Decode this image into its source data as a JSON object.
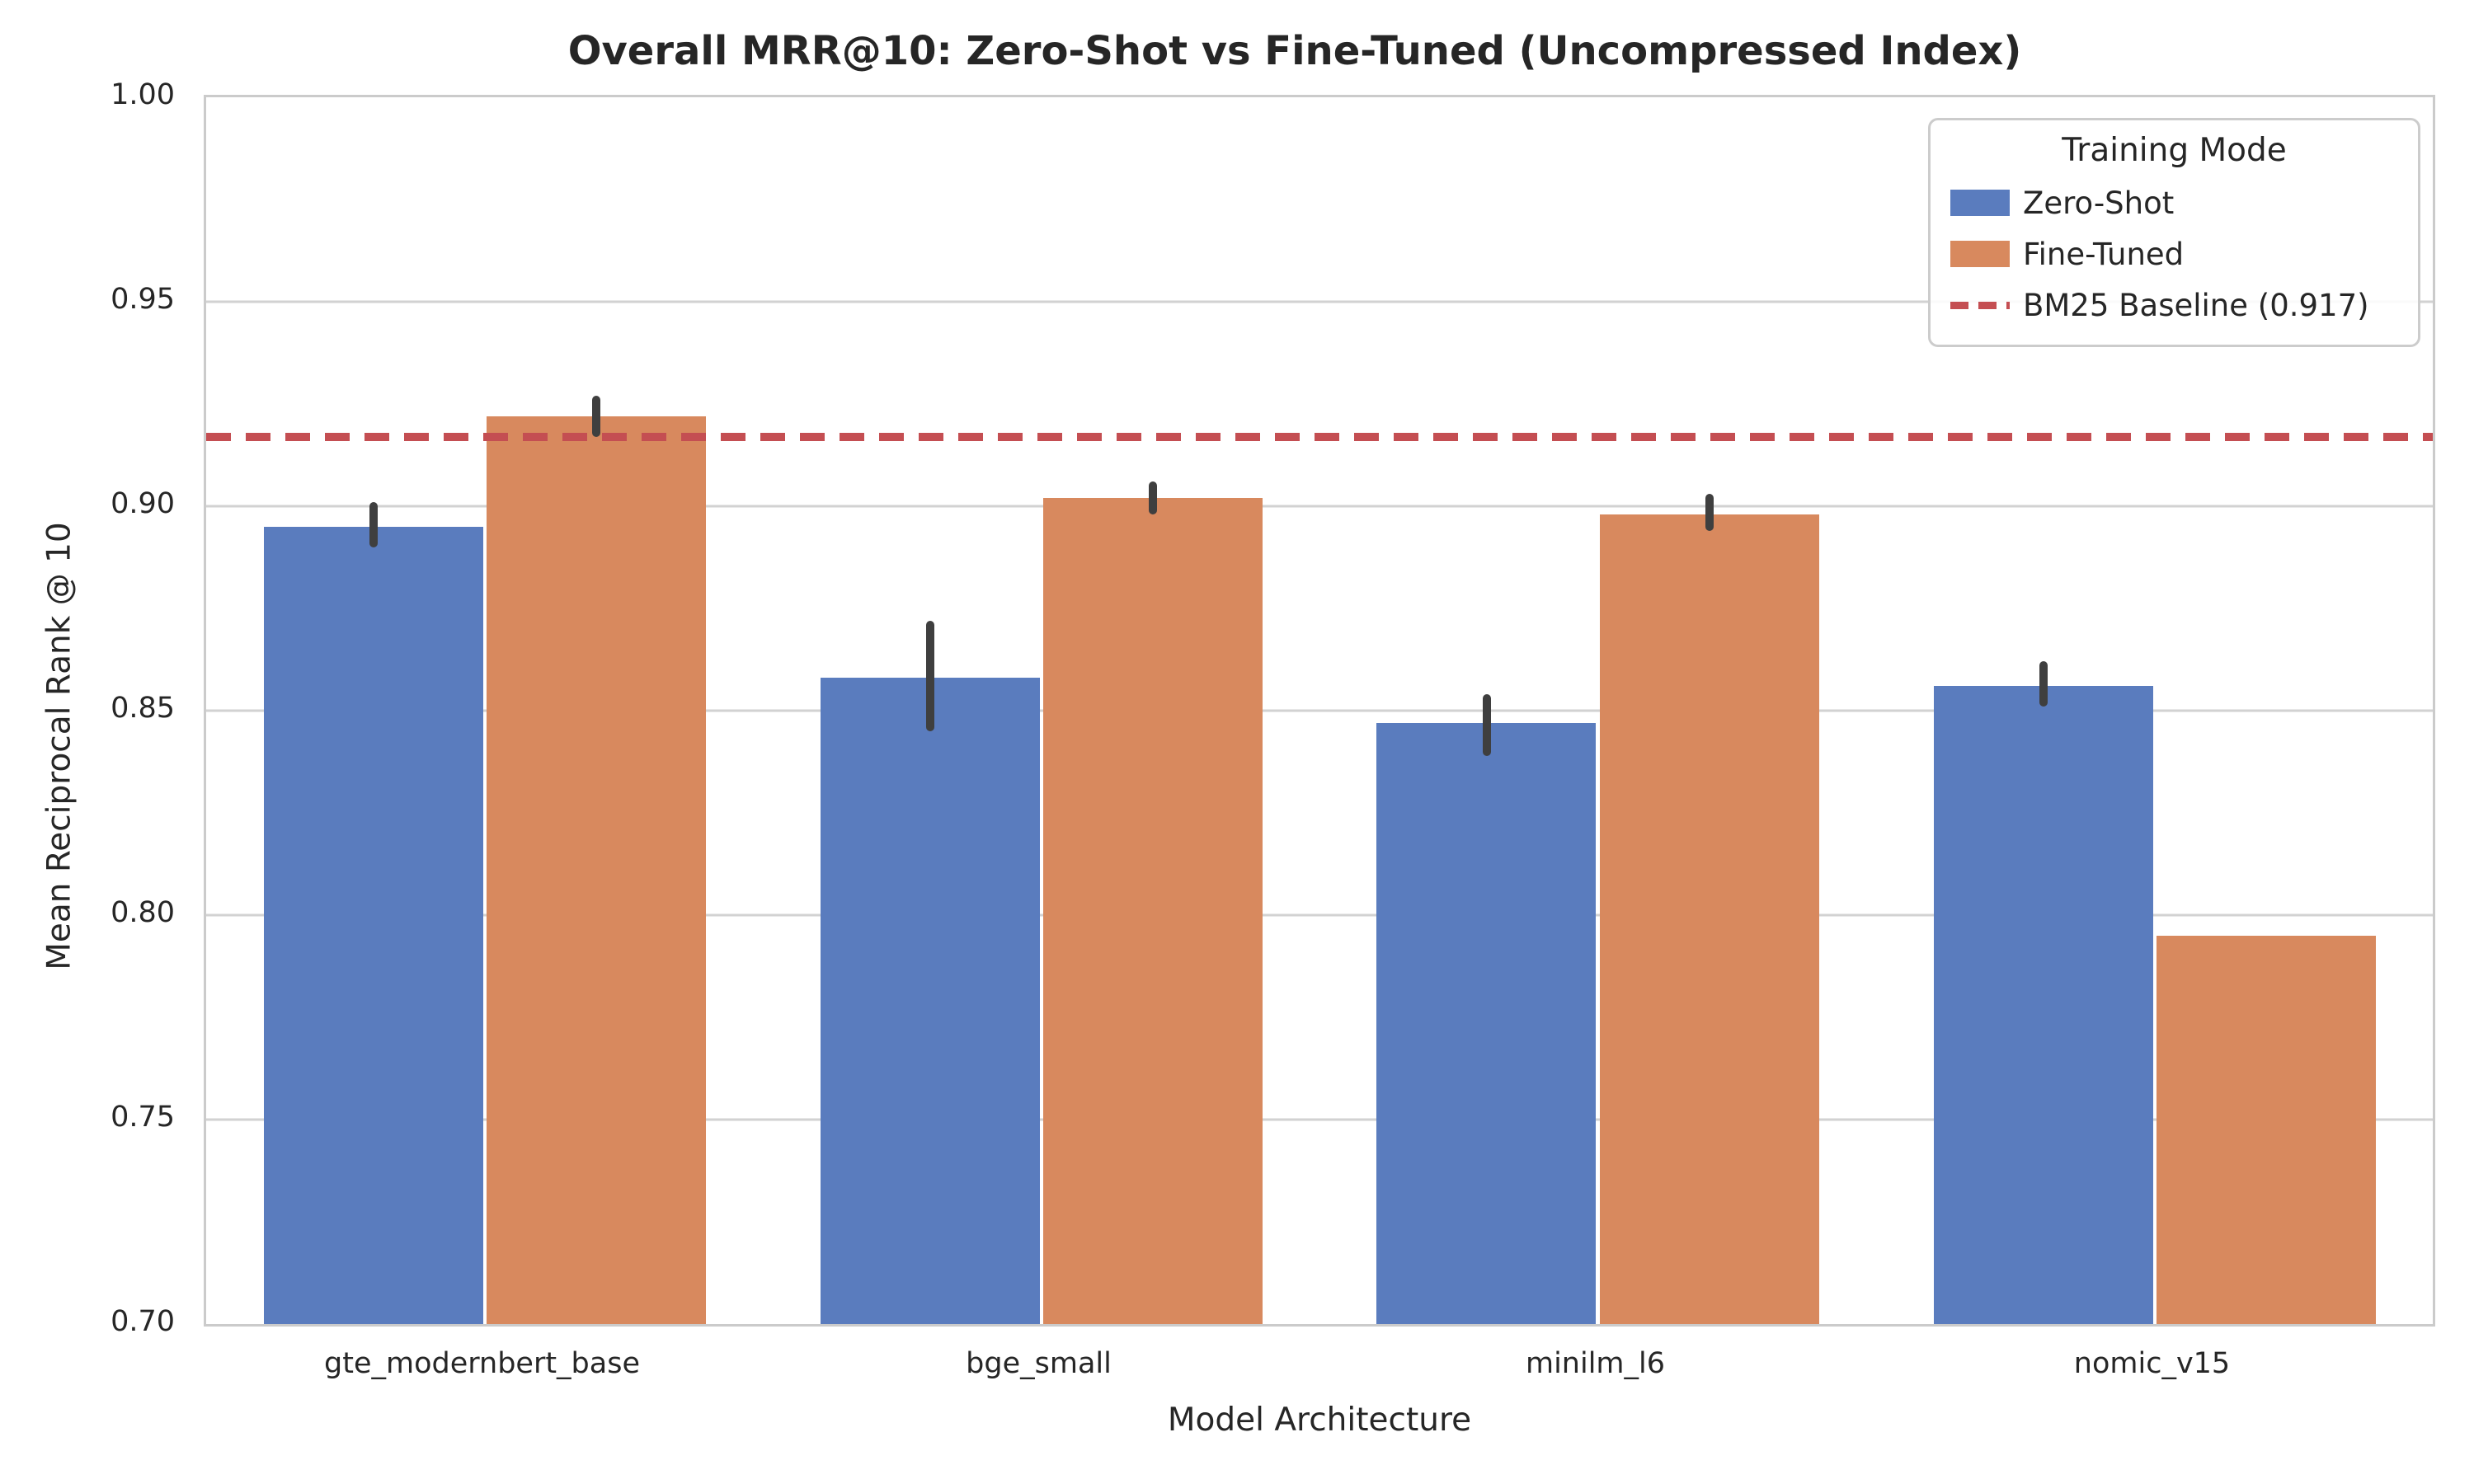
{
  "figure": {
    "title": "Overall MRR@10: Zero-Shot vs Fine-Tuned (Uncompressed Index)",
    "xlabel": "Model Architecture",
    "ylabel": "Mean Reciprocal Rank @ 10"
  },
  "legend": {
    "title": "Training Mode",
    "entries": [
      {
        "label": "Zero-Shot",
        "swatch": "rect",
        "color": "#5A7CBE"
      },
      {
        "label": "Fine-Tuned",
        "swatch": "rect",
        "color": "#D8895E"
      },
      {
        "label": "BM25 Baseline (0.917)",
        "swatch": "dashed-line",
        "color": "#C44E52"
      }
    ]
  },
  "chart_data": {
    "type": "bar",
    "title": "Overall MRR@10: Zero-Shot vs Fine-Tuned (Uncompressed Index)",
    "xlabel": "Model Architecture",
    "ylabel": "Mean Reciprocal Rank @ 10",
    "categories": [
      "gte_modernbert_base",
      "bge_small",
      "minilm_l6",
      "nomic_v15"
    ],
    "series": [
      {
        "name": "Zero-Shot",
        "color": "#5A7CBE",
        "values": [
          0.895,
          0.858,
          0.847,
          0.856
        ],
        "err_low": [
          0.89,
          0.845,
          0.839,
          0.851
        ],
        "err_high": [
          0.901,
          0.872,
          0.854,
          0.862
        ]
      },
      {
        "name": "Fine-Tuned",
        "color": "#D8895E",
        "values": [
          0.922,
          0.902,
          0.898,
          0.795
        ],
        "err_low": [
          0.917,
          0.898,
          0.894,
          null
        ],
        "err_high": [
          0.927,
          0.906,
          0.903,
          null
        ]
      }
    ],
    "baseline": {
      "value": 0.917,
      "label": "BM25 Baseline (0.917)",
      "color": "#C44E52",
      "style": "dashed"
    },
    "ylim": [
      0.7,
      1.0
    ],
    "yticks": [
      0.7,
      0.75,
      0.8,
      0.85,
      0.9,
      0.95,
      1.0
    ],
    "ytick_labels": [
      "0.70",
      "0.75",
      "0.80",
      "0.85",
      "0.90",
      "0.95",
      "1.00"
    ],
    "grid": "horizontal-only",
    "legend_position": "upper-right",
    "errorbar_color": "#3F3F3F",
    "grid_color": "#D2D2D2",
    "spine_color": "#CBCBCB",
    "background_color": "#FFFFFF",
    "text_color": "#262626"
  }
}
